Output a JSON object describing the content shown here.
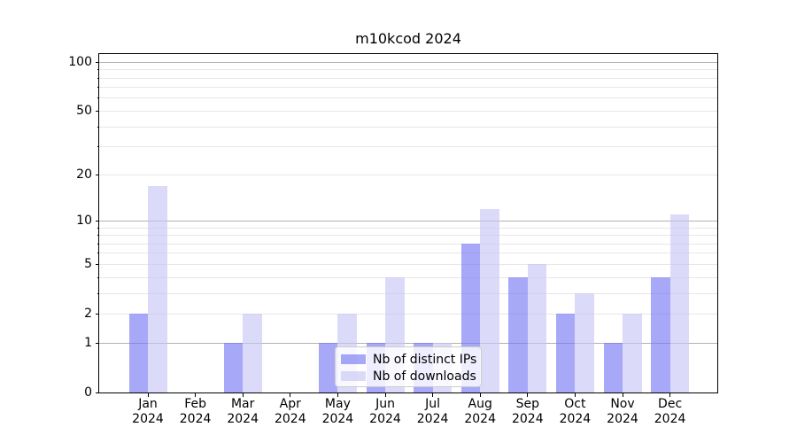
{
  "title": "m10kcod 2024",
  "chart_data": {
    "type": "bar",
    "title": "m10kcod 2024",
    "categories": [
      "Jan",
      "Feb",
      "Mar",
      "Apr",
      "May",
      "Jun",
      "Jul",
      "Aug",
      "Sep",
      "Oct",
      "Nov",
      "Dec"
    ],
    "year_label": "2024",
    "series": [
      {
        "name": "Nb of distinct IPs",
        "color": "rgba(114,114,244,0.62)",
        "values": [
          2,
          0,
          1,
          0,
          1,
          1,
          1,
          7,
          4,
          2,
          1,
          4
        ]
      },
      {
        "name": "Nb of downloads",
        "color": "rgba(197,197,246,0.62)",
        "values": [
          17,
          0,
          2,
          0,
          2,
          4,
          1,
          12,
          5,
          3,
          2,
          11
        ]
      }
    ],
    "y_axis": {
      "scale": "log1p",
      "ylim": [
        0,
        112
      ],
      "labeled_ticks": [
        {
          "label": "0",
          "value": 0
        },
        {
          "label": "1",
          "value": 1
        },
        {
          "label": "2",
          "value": 2
        },
        {
          "label": "5",
          "value": 5
        },
        {
          "label": "10",
          "value": 10
        },
        {
          "label": "20",
          "value": 20
        },
        {
          "label": "50",
          "value": 50
        },
        {
          "label": "100",
          "value": 100
        }
      ],
      "major_gridlines": [
        1,
        10,
        100
      ],
      "minor_gridlines": [
        2,
        3,
        4,
        5,
        6,
        7,
        8,
        9,
        20,
        30,
        40,
        50,
        60,
        70,
        80,
        90
      ]
    },
    "grid": true,
    "legend_position": "lower center"
  },
  "colors": {
    "major_grid": "#b2b2b2",
    "minor_grid": "#e7e7e7",
    "spine": "#000000",
    "text": "#000000",
    "legend_bg": "rgba(255,255,255,0.8)",
    "legend_border": "#cccccc",
    "background": "#ffffff"
  }
}
